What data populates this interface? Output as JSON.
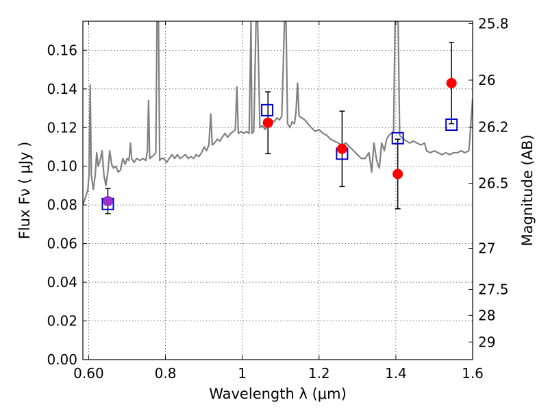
{
  "chart_data": {
    "type": "scatter",
    "xlabel": "Wavelength  λ (μm)",
    "ylabel": "Flux  Fν  ( μJy )",
    "ylabel_right": "Magnitude (AB)",
    "xlim": [
      0.585,
      1.6
    ],
    "ylim": [
      0.0,
      0.175
    ],
    "x_ticks": [
      0.6,
      0.8,
      1.0,
      1.2,
      1.4,
      1.6
    ],
    "x_tick_labels": [
      "0.60",
      "0.8",
      "1",
      "1.2",
      "1.4",
      "1.6"
    ],
    "y_ticks": [
      0.0,
      0.02,
      0.04,
      0.06,
      0.08,
      0.1,
      0.12,
      0.14,
      0.16
    ],
    "y_tick_labels": [
      "0.00",
      "0.02",
      "0.04",
      "0.06",
      "0.08",
      "0.10",
      "0.12",
      "0.14",
      "0.16"
    ],
    "right_ticks": [
      {
        "mag": 25.8,
        "label": "25.8"
      },
      {
        "mag": 26.0,
        "label": "26"
      },
      {
        "mag": 26.2,
        "label": "26.2"
      },
      {
        "mag": 26.5,
        "label": "26.5"
      },
      {
        "mag": 27.0,
        "label": "27"
      },
      {
        "mag": 27.5,
        "label": "27.5"
      },
      {
        "mag": 28.0,
        "label": "28"
      },
      {
        "mag": 29.0,
        "label": "29"
      }
    ],
    "grid": true,
    "colors": {
      "spectrum": "#808080",
      "observed": "#ff0000",
      "model": "#0000cc",
      "overlap": "#9933cc",
      "errorbar": "#000000"
    },
    "series": [
      {
        "type": "line",
        "points": [
          [
            0.585,
            0.08
          ],
          [
            0.592,
            0.084
          ],
          [
            0.598,
            0.088
          ],
          [
            0.601,
            0.096
          ],
          [
            0.604,
            0.142
          ],
          [
            0.607,
            0.096
          ],
          [
            0.612,
            0.088
          ],
          [
            0.617,
            0.095
          ],
          [
            0.621,
            0.107
          ],
          [
            0.625,
            0.1
          ],
          [
            0.63,
            0.103
          ],
          [
            0.635,
            0.108
          ],
          [
            0.64,
            0.095
          ],
          [
            0.645,
            0.09
          ],
          [
            0.65,
            0.097
          ],
          [
            0.655,
            0.108
          ],
          [
            0.66,
            0.101
          ],
          [
            0.665,
            0.099
          ],
          [
            0.671,
            0.1
          ],
          [
            0.677,
            0.097
          ],
          [
            0.683,
            0.098
          ],
          [
            0.689,
            0.104
          ],
          [
            0.695,
            0.101
          ],
          [
            0.7,
            0.104
          ],
          [
            0.705,
            0.103
          ],
          [
            0.709,
            0.112
          ],
          [
            0.712,
            0.104
          ],
          [
            0.718,
            0.102
          ],
          [
            0.725,
            0.104
          ],
          [
            0.733,
            0.103
          ],
          [
            0.741,
            0.104
          ],
          [
            0.749,
            0.103
          ],
          [
            0.753,
            0.108
          ],
          [
            0.756,
            0.134
          ],
          [
            0.759,
            0.104
          ],
          [
            0.765,
            0.105
          ],
          [
            0.771,
            0.106
          ],
          [
            0.775,
            0.107
          ],
          [
            0.778,
            0.175
          ],
          [
            0.782,
            0.175
          ],
          [
            0.785,
            0.103
          ],
          [
            0.79,
            0.104
          ],
          [
            0.796,
            0.104
          ],
          [
            0.803,
            0.102
          ],
          [
            0.81,
            0.104
          ],
          [
            0.817,
            0.106
          ],
          [
            0.824,
            0.104
          ],
          [
            0.831,
            0.106
          ],
          [
            0.838,
            0.104
          ],
          [
            0.845,
            0.105
          ],
          [
            0.852,
            0.106
          ],
          [
            0.859,
            0.104
          ],
          [
            0.866,
            0.105
          ],
          [
            0.873,
            0.104
          ],
          [
            0.88,
            0.106
          ],
          [
            0.887,
            0.105
          ],
          [
            0.894,
            0.107
          ],
          [
            0.901,
            0.11
          ],
          [
            0.907,
            0.108
          ],
          [
            0.913,
            0.111
          ],
          [
            0.918,
            0.127
          ],
          [
            0.922,
            0.111
          ],
          [
            0.928,
            0.112
          ],
          [
            0.935,
            0.114
          ],
          [
            0.942,
            0.113
          ],
          [
            0.948,
            0.115
          ],
          [
            0.955,
            0.117
          ],
          [
            0.962,
            0.115
          ],
          [
            0.97,
            0.117
          ],
          [
            0.977,
            0.118
          ],
          [
            0.982,
            0.119
          ],
          [
            0.986,
            0.141
          ],
          [
            0.99,
            0.117
          ],
          [
            0.997,
            0.118
          ],
          [
            1.004,
            0.117
          ],
          [
            1.011,
            0.118
          ],
          [
            1.018,
            0.117
          ],
          [
            1.023,
            0.175
          ],
          [
            1.025,
            0.117
          ],
          [
            1.03,
            0.118
          ],
          [
            1.036,
            0.175
          ],
          [
            1.04,
            0.175
          ],
          [
            1.046,
            0.12
          ],
          [
            1.052,
            0.121
          ],
          [
            1.06,
            0.119
          ],
          [
            1.068,
            0.122
          ],
          [
            1.075,
            0.124
          ],
          [
            1.083,
            0.123
          ],
          [
            1.09,
            0.125
          ],
          [
            1.097,
            0.124
          ],
          [
            1.103,
            0.126
          ],
          [
            1.11,
            0.175
          ],
          [
            1.114,
            0.175
          ],
          [
            1.118,
            0.122
          ],
          [
            1.124,
            0.12
          ],
          [
            1.13,
            0.123
          ],
          [
            1.136,
            0.122
          ],
          [
            1.14,
            0.128
          ],
          [
            1.144,
            0.143
          ],
          [
            1.148,
            0.126
          ],
          [
            1.155,
            0.125
          ],
          [
            1.163,
            0.124
          ],
          [
            1.171,
            0.122
          ],
          [
            1.18,
            0.12
          ],
          [
            1.19,
            0.118
          ],
          [
            1.2,
            0.119
          ],
          [
            1.21,
            0.117
          ],
          [
            1.22,
            0.116
          ],
          [
            1.23,
            0.114
          ],
          [
            1.24,
            0.113
          ],
          [
            1.25,
            0.112
          ],
          [
            1.26,
            0.111
          ],
          [
            1.27,
            0.112
          ],
          [
            1.28,
            0.11
          ],
          [
            1.29,
            0.108
          ],
          [
            1.3,
            0.106
          ],
          [
            1.31,
            0.104
          ],
          [
            1.32,
            0.104
          ],
          [
            1.33,
            0.107
          ],
          [
            1.337,
            0.097
          ],
          [
            1.343,
            0.112
          ],
          [
            1.35,
            0.103
          ],
          [
            1.357,
            0.099
          ],
          [
            1.363,
            0.112
          ],
          [
            1.37,
            0.108
          ],
          [
            1.376,
            0.114
          ],
          [
            1.382,
            0.116
          ],
          [
            1.388,
            0.117
          ],
          [
            1.394,
            0.118
          ],
          [
            1.398,
            0.175
          ],
          [
            1.402,
            0.175
          ],
          [
            1.406,
            0.175
          ],
          [
            1.41,
            0.116
          ],
          [
            1.415,
            0.115
          ],
          [
            1.42,
            0.114
          ],
          [
            1.428,
            0.113
          ],
          [
            1.436,
            0.112
          ],
          [
            1.445,
            0.113
          ],
          [
            1.455,
            0.112
          ],
          [
            1.465,
            0.111
          ],
          [
            1.475,
            0.112
          ],
          [
            1.48,
            0.108
          ],
          [
            1.49,
            0.107
          ],
          [
            1.5,
            0.108
          ],
          [
            1.51,
            0.107
          ],
          [
            1.52,
            0.106
          ],
          [
            1.53,
            0.107
          ],
          [
            1.54,
            0.106
          ],
          [
            1.55,
            0.107
          ],
          [
            1.56,
            0.107
          ],
          [
            1.57,
            0.108
          ],
          [
            1.58,
            0.107
          ],
          [
            1.59,
            0.108
          ],
          [
            1.593,
            0.115
          ],
          [
            1.597,
            0.127
          ],
          [
            1.6,
            0.135
          ]
        ]
      },
      {
        "type": "scatter",
        "marker": "circle",
        "points": [
          {
            "x": 0.65,
            "y": 0.082,
            "err": 0.0065
          },
          {
            "x": 1.067,
            "y": 0.1225,
            "err": 0.016
          },
          {
            "x": 1.26,
            "y": 0.109,
            "err": 0.0195
          },
          {
            "x": 1.405,
            "y": 0.096,
            "err": 0.018
          },
          {
            "x": 1.545,
            "y": 0.143,
            "err": 0.021
          }
        ]
      },
      {
        "type": "scatter",
        "marker": "square",
        "points": [
          {
            "x": 0.65,
            "y": 0.0805
          },
          {
            "x": 1.065,
            "y": 0.129
          },
          {
            "x": 1.26,
            "y": 0.1065
          },
          {
            "x": 1.405,
            "y": 0.1145
          },
          {
            "x": 1.545,
            "y": 0.1215
          }
        ]
      }
    ]
  }
}
